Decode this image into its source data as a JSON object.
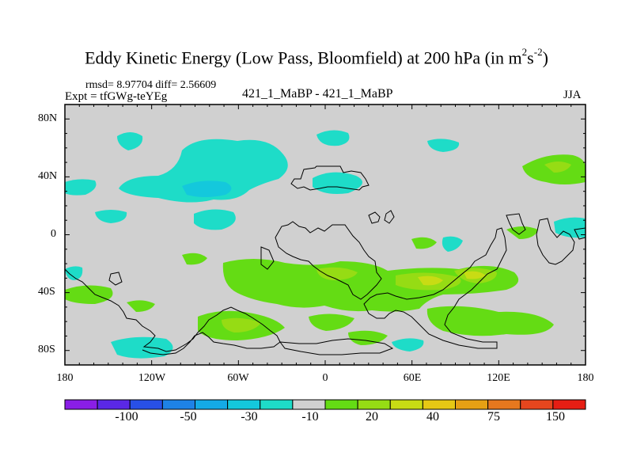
{
  "title": {
    "main": "Eddy Kinetic Energy (Low Pass, Bloomfield) at 200 hPa (in m",
    "sup1": "2",
    "mid": "s",
    "sup2": "-2",
    "end": ")"
  },
  "stats": "rmsd= 8.97704 diff= 2.56609",
  "expt": "Expt = tfGWg-teYEg",
  "diff_name": "421_1_MaBP - 421_1_MaBP",
  "season": "JJA",
  "map": {
    "background_color": "#d0d0d0",
    "lat_labels": [
      "80N",
      "40N",
      "0",
      "40S",
      "80S"
    ],
    "lon_labels": [
      "180",
      "120W",
      "60W",
      "0",
      "60E",
      "120E",
      "180"
    ]
  },
  "colorbar": {
    "colors": [
      "#8a1ee6",
      "#5a28e6",
      "#2850e6",
      "#1e82e6",
      "#14aae6",
      "#14c8dc",
      "#1edcc8",
      "#d0d0d0",
      "#64dc14",
      "#96dc14",
      "#c8dc14",
      "#e6c814",
      "#e6a014",
      "#e6781e",
      "#e6461e",
      "#e61e14"
    ],
    "labels": [
      "-100",
      "-50",
      "-30",
      "-10",
      "20",
      "40",
      "75",
      "150"
    ]
  }
}
